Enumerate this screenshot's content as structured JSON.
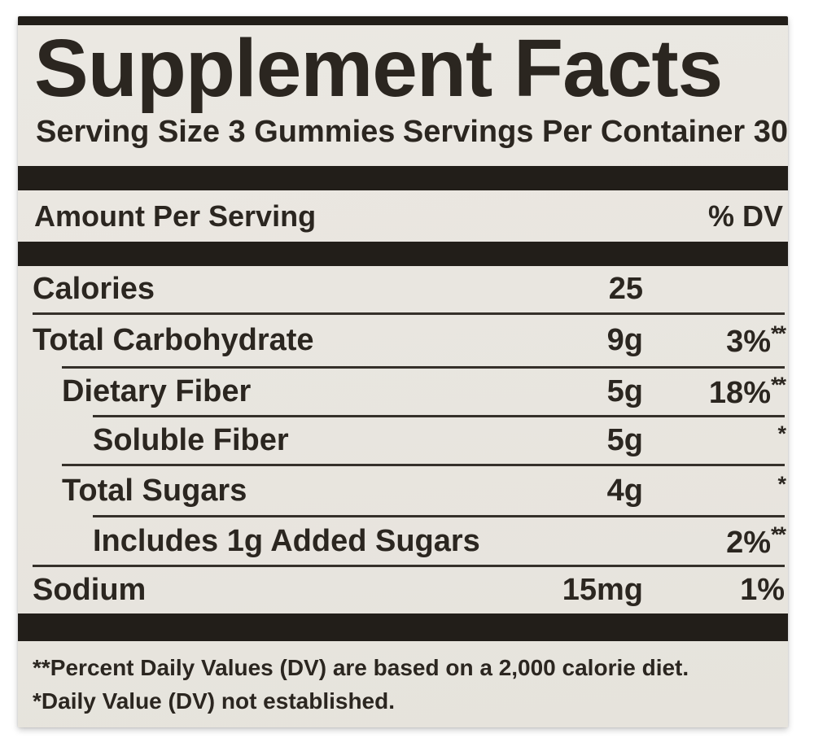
{
  "header": {
    "title": "Supplement Facts",
    "serving_size": "Serving Size 3 Gummies",
    "servings_per_container": "Servings Per Container 30"
  },
  "table": {
    "amount_header": "Amount Per Serving",
    "dv_header": "% DV",
    "rows": [
      {
        "name": "Calories",
        "amount": "25",
        "dv": "",
        "dv_sup": ""
      },
      {
        "name": "Total Carbohydrate",
        "amount": "9g",
        "dv": "3%",
        "dv_sup": "**"
      },
      {
        "name": "Dietary Fiber",
        "amount": "5g",
        "dv": "18%",
        "dv_sup": "**"
      },
      {
        "name": "Soluble Fiber",
        "amount": "5g",
        "dv": "",
        "dv_sup": "*"
      },
      {
        "name": "Total Sugars",
        "amount": "4g",
        "dv": "",
        "dv_sup": "*"
      },
      {
        "name": "Includes 1g Added Sugars",
        "amount": "",
        "dv": "2%",
        "dv_sup": "**"
      },
      {
        "name": "Sodium",
        "amount": "15mg",
        "dv": "1%",
        "dv_sup": ""
      }
    ]
  },
  "footnotes": [
    "**Percent Daily Values (DV) are based on a 2,000 calorie diet.",
    "*Daily Value (DV) not established."
  ],
  "colors": {
    "label_bg": "#e9e6e0",
    "ink": "#2b2620",
    "bar": "#221e19",
    "hairline": "#35302a"
  }
}
